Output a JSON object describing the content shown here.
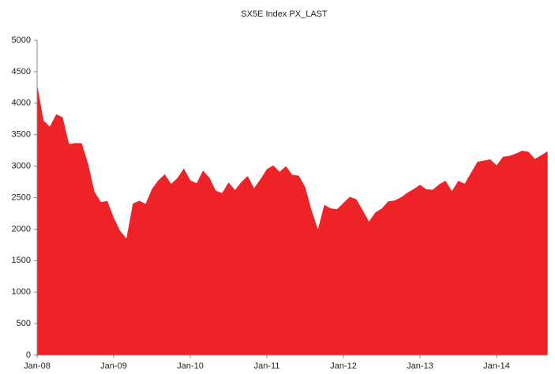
{
  "chart_data": {
    "type": "area",
    "title": "SX5E Index PX_LAST",
    "x": [
      "2008-01",
      "2008-02",
      "2008-03",
      "2008-04",
      "2008-05",
      "2008-06",
      "2008-07",
      "2008-08",
      "2008-09",
      "2008-10",
      "2008-11",
      "2008-12",
      "2009-01",
      "2009-02",
      "2009-03",
      "2009-04",
      "2009-05",
      "2009-06",
      "2009-07",
      "2009-08",
      "2009-09",
      "2009-10",
      "2009-11",
      "2009-12",
      "2010-01",
      "2010-02",
      "2010-03",
      "2010-04",
      "2010-05",
      "2010-06",
      "2010-07",
      "2010-08",
      "2010-09",
      "2010-10",
      "2010-11",
      "2010-12",
      "2011-01",
      "2011-02",
      "2011-03",
      "2011-04",
      "2011-05",
      "2011-06",
      "2011-07",
      "2011-08",
      "2011-09",
      "2011-10",
      "2011-11",
      "2011-12",
      "2012-01",
      "2012-02",
      "2012-03",
      "2012-04",
      "2012-05",
      "2012-06",
      "2012-07",
      "2012-08",
      "2012-09",
      "2012-10",
      "2012-11",
      "2012-12",
      "2013-01",
      "2013-02",
      "2013-03",
      "2013-04",
      "2013-05",
      "2013-06",
      "2013-07",
      "2013-08",
      "2013-09",
      "2013-10",
      "2013-11",
      "2013-12",
      "2014-01",
      "2014-02",
      "2014-03",
      "2014-04",
      "2014-05",
      "2014-06",
      "2014-07",
      "2014-08",
      "2014-09"
    ],
    "values": [
      4300,
      3725,
      3628,
      3825,
      3777,
      3352,
      3367,
      3365,
      3038,
      2591,
      2430,
      2448,
      2184,
      1976,
      1850,
      2404,
      2451,
      2401,
      2639,
      2775,
      2872,
      2720,
      2812,
      2965,
      2776,
      2728,
      2931,
      2817,
      2610,
      2573,
      2742,
      2622,
      2748,
      2845,
      2650,
      2793,
      2953,
      3013,
      2910,
      2999,
      2862,
      2849,
      2671,
      2303,
      1996,
      2385,
      2330,
      2316,
      2417,
      2512,
      2477,
      2306,
      2119,
      2265,
      2326,
      2440,
      2454,
      2503,
      2576,
      2636,
      2703,
      2633,
      2625,
      2712,
      2770,
      2603,
      2768,
      2721,
      2894,
      3068,
      3087,
      3109,
      3013,
      3149,
      3162,
      3198,
      3245,
      3228,
      3116,
      3173,
      3236
    ],
    "color": "#ee2328",
    "xticks": [
      {
        "value": "2008-01",
        "label": "Jan-08"
      },
      {
        "value": "2009-01",
        "label": "Jan-09"
      },
      {
        "value": "2010-01",
        "label": "Jan-10"
      },
      {
        "value": "2011-01",
        "label": "Jan-11"
      },
      {
        "value": "2012-01",
        "label": "Jan-12"
      },
      {
        "value": "2013-01",
        "label": "Jan-13"
      },
      {
        "value": "2014-01",
        "label": "Jan-14"
      }
    ],
    "ylim": [
      0,
      5000
    ],
    "yticks": [
      0,
      500,
      1000,
      1500,
      2000,
      2500,
      3000,
      3500,
      4000,
      4500,
      5000
    ],
    "grid": false
  }
}
